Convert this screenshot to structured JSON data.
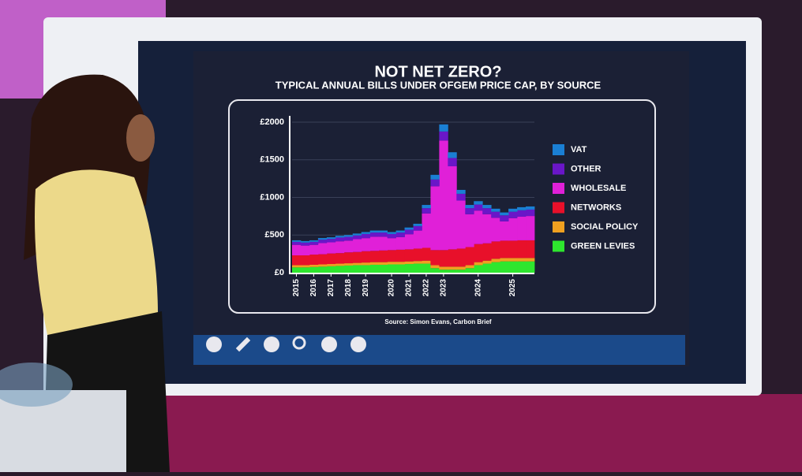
{
  "chart_data": {
    "type": "stacked-step",
    "title": "NOT NET ZERO?",
    "subtitle": "TYPICAL ANNUAL BILLS UNDER OFGEM PRICE CAP, BY SOURCE",
    "source": "Source: Simon Evans, Carbon Brief",
    "categories": [
      "2015",
      null,
      "2016",
      null,
      "2017",
      null,
      "2018",
      null,
      "2019",
      null,
      null,
      "2020",
      null,
      "2021",
      null,
      "2022",
      null,
      "2023",
      null,
      null,
      null,
      "2024",
      null,
      null,
      null,
      "2025",
      null,
      null
    ],
    "series": [
      {
        "name": "GREEN LEVIES",
        "color": "#2ee62e",
        "values": [
          70,
          70,
          75,
          80,
          85,
          90,
          95,
          100,
          100,
          105,
          105,
          110,
          110,
          115,
          120,
          120,
          60,
          40,
          40,
          40,
          60,
          100,
          120,
          140,
          150,
          150,
          150,
          150
        ]
      },
      {
        "name": "SOCIAL POLICY",
        "color": "#f0a020",
        "values": [
          30,
          30,
          30,
          30,
          30,
          30,
          30,
          30,
          35,
          35,
          35,
          35,
          35,
          35,
          35,
          40,
          40,
          40,
          40,
          40,
          40,
          40,
          40,
          45,
          45,
          45,
          45,
          45
        ]
      },
      {
        "name": "NETWORKS",
        "color": "#e8102a",
        "values": [
          130,
          130,
          135,
          135,
          140,
          140,
          145,
          145,
          150,
          150,
          155,
          155,
          160,
          160,
          165,
          170,
          200,
          220,
          230,
          240,
          240,
          240,
          230,
          230,
          230,
          230,
          235,
          235
        ]
      },
      {
        "name": "WHOLESALE",
        "color": "#e020d8",
        "values": [
          140,
          130,
          130,
          148,
          148,
          157,
          156,
          170,
          174,
          188,
          183,
          159,
          168,
          201,
          239,
          457,
          848,
          1456,
          1104,
          638,
          437,
          445,
          387,
          315,
          257,
          300,
          314,
          323
        ]
      },
      {
        "name": "OTHER",
        "color": "#6a16c8",
        "values": [
          40,
          40,
          40,
          45,
          45,
          50,
          50,
          50,
          55,
          55,
          55,
          55,
          60,
          60,
          60,
          70,
          90,
          120,
          110,
          90,
          80,
          80,
          80,
          80,
          80,
          85,
          85,
          85
        ]
      },
      {
        "name": "VAT",
        "color": "#1a7fd4",
        "values": [
          20,
          20,
          20,
          22,
          22,
          23,
          24,
          25,
          26,
          27,
          27,
          26,
          27,
          29,
          31,
          43,
          62,
          94,
          76,
          52,
          43,
          45,
          43,
          40,
          38,
          40,
          41,
          42
        ]
      }
    ],
    "ylim": [
      0,
      2000
    ],
    "yticks": [
      {
        "value": 0,
        "label": "£0"
      },
      {
        "value": 500,
        "label": "£500"
      },
      {
        "value": 1000,
        "label": "£1000"
      },
      {
        "value": 1500,
        "label": "£1500"
      },
      {
        "value": 2000,
        "label": "£2000"
      }
    ],
    "grid": true
  }
}
